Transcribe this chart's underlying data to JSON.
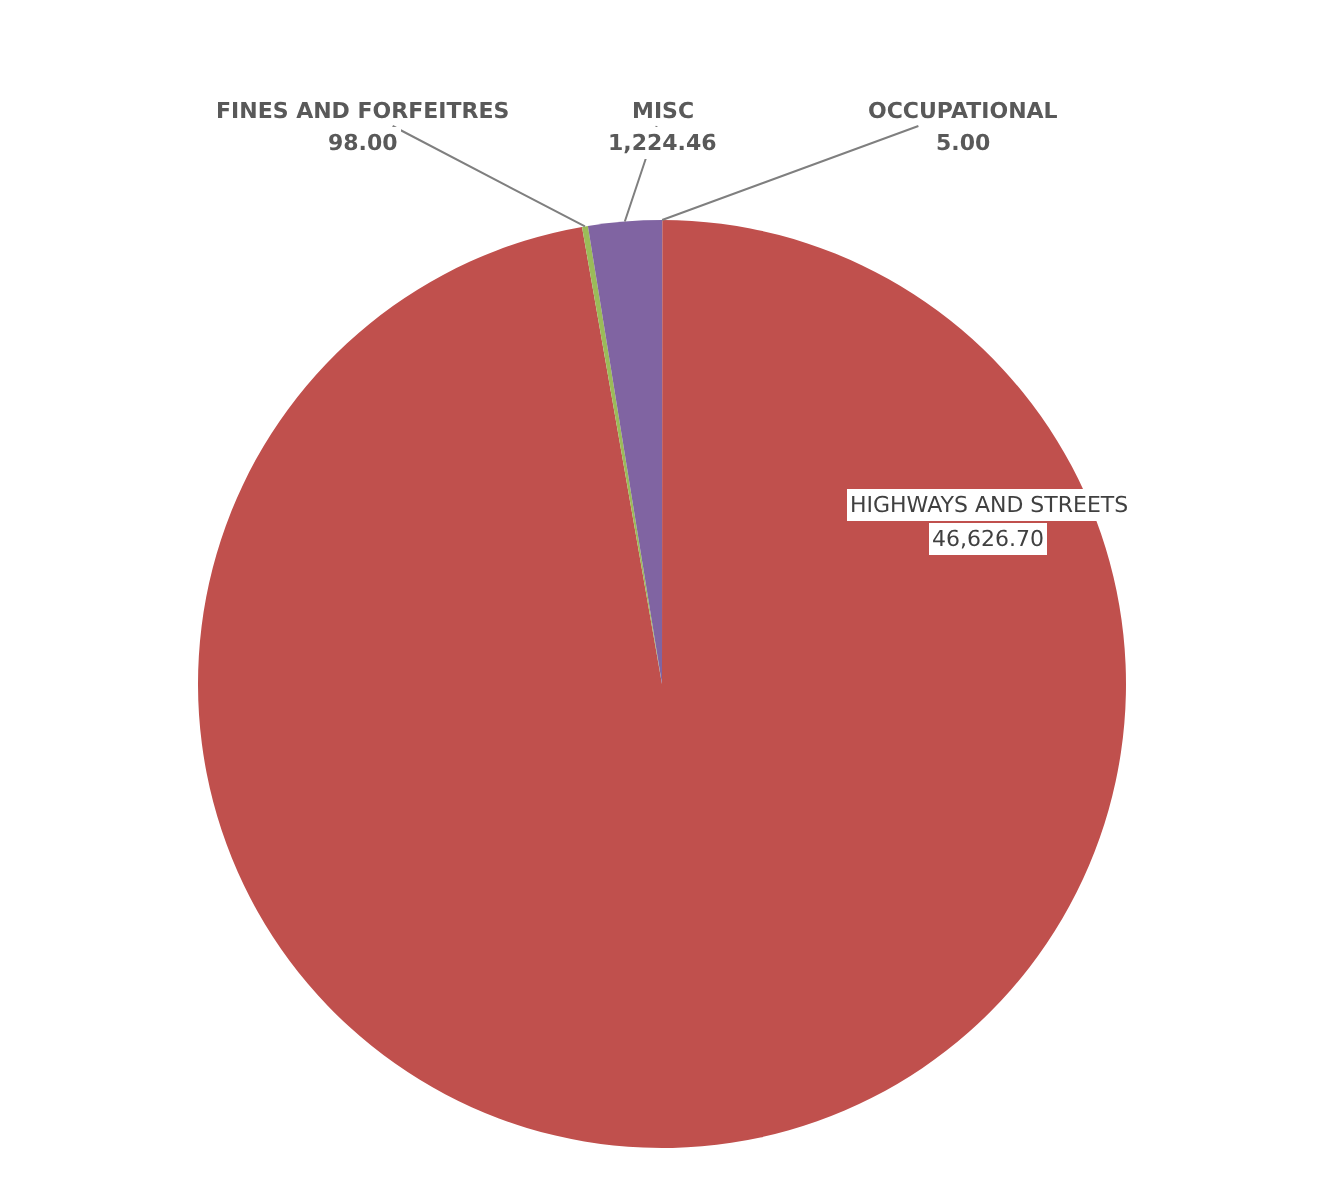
{
  "chart_data": {
    "type": "pie",
    "categories": [
      "OCCUPATIONAL",
      "HIGHWAYS AND STREETS",
      "FINES AND FORFEITRES",
      "MISC"
    ],
    "values": [
      5.0,
      46626.7,
      98.0,
      1224.46
    ],
    "colors": [
      "#4f81bd",
      "#c0504d",
      "#9bbb59",
      "#8064a2"
    ],
    "data_labels": true,
    "value_labels": [
      "5.00",
      "46,626.70",
      "98.00",
      "1,224.46"
    ],
    "legend": false
  }
}
